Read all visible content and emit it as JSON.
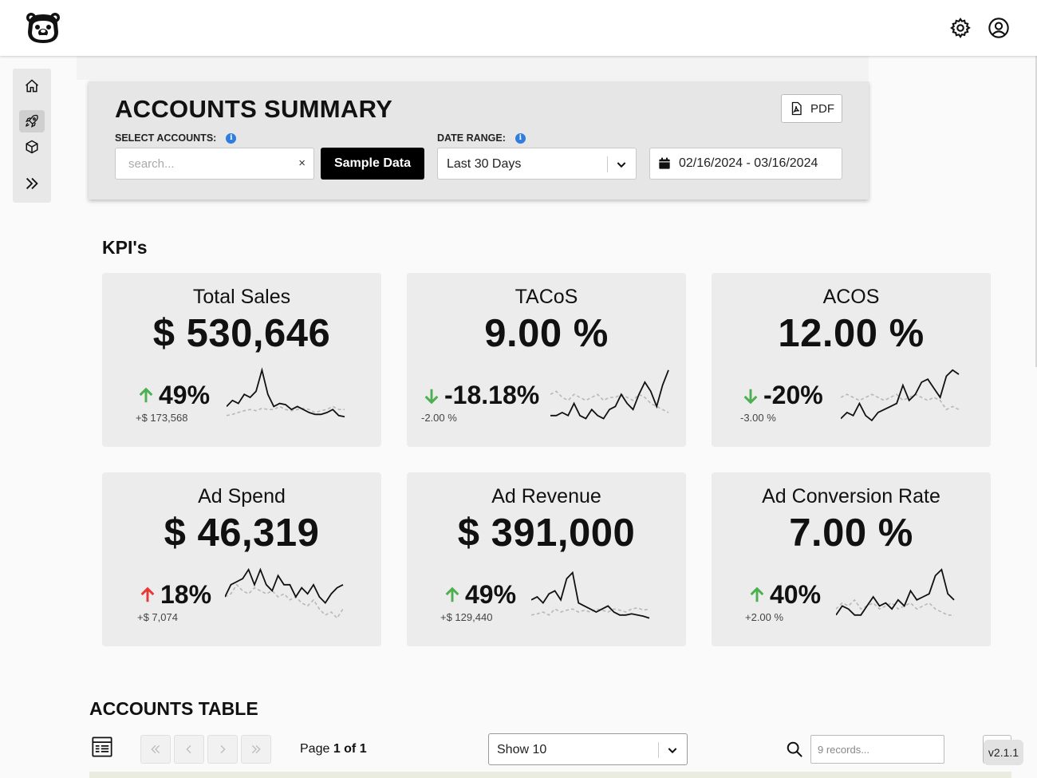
{
  "header": {
    "logo": "bear-logo",
    "icons": [
      "gear-icon",
      "user-circle-icon"
    ]
  },
  "sidebar": {
    "items": [
      {
        "icon": "home-icon",
        "active": false
      },
      {
        "icon": "rocket-icon",
        "active": true
      },
      {
        "icon": "box-icon",
        "active": false
      },
      {
        "icon": "double-chevron-right-icon",
        "active": false
      }
    ]
  },
  "summary": {
    "title": "ACCOUNTS SUMMARY",
    "pdf_label": "PDF",
    "accounts_label": "SELECT ACCOUNTS:",
    "search_placeholder": "search...",
    "clear": "×",
    "sample_button": "Sample Data",
    "date_range_label": "DATE RANGE:",
    "date_range_value": "Last 30 Days",
    "date_value": "02/16/2024 - 03/16/2024"
  },
  "kpis": {
    "section_title": "KPI's",
    "colors": {
      "up_good": "#4caf50",
      "up_bad": "#e53935",
      "down": "#4caf50",
      "current": "#111111",
      "previous": "#b8b8b8"
    },
    "cards": [
      {
        "title": "Total Sales",
        "value": "$ 530,646",
        "change": "49%",
        "direction": "up",
        "arrow_color": "#4caf50",
        "sub": "+$ 173,568",
        "spark_current": [
          0.35,
          0.45,
          0.4,
          0.55,
          0.5,
          0.6,
          0.95,
          0.55,
          0.35,
          0.4,
          0.38,
          0.3,
          0.35,
          0.3,
          0.25,
          0.22,
          0.22,
          0.25,
          0.3,
          0.2,
          0.18
        ],
        "spark_previous": [
          0.2,
          0.22,
          0.25,
          0.28,
          0.3,
          0.28,
          0.32,
          0.3,
          0.3,
          0.35,
          0.3,
          0.28,
          0.3,
          0.32,
          0.3,
          0.25,
          0.28,
          0.3,
          0.35,
          0.3,
          0.3
        ]
      },
      {
        "title": "TACoS",
        "value": "9.00 %",
        "change": "-18.18%",
        "direction": "down",
        "arrow_color": "#4caf50",
        "sub": "-2.00 %",
        "spark_current": [
          0.2,
          0.2,
          0.25,
          0.2,
          0.4,
          0.2,
          0.15,
          0.3,
          0.2,
          0.15,
          0.3,
          0.35,
          0.55,
          0.4,
          0.3,
          0.55,
          0.75,
          0.6,
          0.35,
          0.7,
          0.95
        ],
        "spark_previous": [
          0.55,
          0.6,
          0.5,
          0.45,
          0.55,
          0.5,
          0.45,
          0.5,
          0.55,
          0.45,
          0.5,
          0.5,
          0.55,
          0.5,
          0.45,
          0.55,
          0.5,
          0.4,
          0.35,
          0.3,
          0.25
        ]
      },
      {
        "title": "ACOS",
        "value": "12.00 %",
        "change": "-20%",
        "direction": "down",
        "arrow_color": "#4caf50",
        "sub": "-3.00 %",
        "spark_current": [
          0.15,
          0.25,
          0.2,
          0.4,
          0.2,
          0.12,
          0.25,
          0.3,
          0.35,
          0.4,
          0.7,
          0.45,
          0.55,
          0.75,
          0.8,
          0.65,
          0.5,
          0.85,
          0.95,
          0.88
        ],
        "spark_previous": [
          0.5,
          0.55,
          0.5,
          0.45,
          0.5,
          0.55,
          0.5,
          0.45,
          0.5,
          0.55,
          0.45,
          0.5,
          0.55,
          0.5,
          0.45,
          0.5,
          0.45,
          0.3,
          0.35,
          0.3
        ]
      },
      {
        "title": "Ad Spend",
        "value": "$ 46,319",
        "change": "18%",
        "direction": "up",
        "arrow_color": "#e53935",
        "sub": "+$ 7,074",
        "spark_current": [
          0.5,
          0.7,
          0.75,
          0.8,
          0.95,
          0.7,
          0.95,
          0.7,
          0.6,
          0.85,
          0.7,
          0.7,
          0.5,
          0.65,
          0.55,
          0.7,
          0.5,
          0.4,
          0.55,
          0.65,
          0.7
        ],
        "spark_previous": [
          0.5,
          0.55,
          0.7,
          0.6,
          0.55,
          0.65,
          0.6,
          0.55,
          0.6,
          0.5,
          0.55,
          0.45,
          0.5,
          0.4,
          0.35,
          0.45,
          0.3,
          0.2,
          0.25,
          0.15,
          0.3
        ]
      },
      {
        "title": "Ad Revenue",
        "value": "$ 391,000",
        "change": "49%",
        "direction": "up",
        "arrow_color": "#4caf50",
        "sub": "+$ 129,440",
        "spark_current": [
          0.45,
          0.5,
          0.4,
          0.55,
          0.6,
          0.45,
          0.8,
          0.9,
          0.4,
          0.35,
          0.3,
          0.25,
          0.3,
          0.35,
          0.25,
          0.2,
          0.2,
          0.22,
          0.2,
          0.18,
          0.15
        ],
        "spark_previous": [
          0.2,
          0.22,
          0.25,
          0.2,
          0.3,
          0.25,
          0.28,
          0.3,
          0.25,
          0.28,
          0.25,
          0.3,
          0.28,
          0.25,
          0.3,
          0.28,
          0.25,
          0.3,
          0.32,
          0.28,
          0.3
        ]
      },
      {
        "title": "Ad Conversion Rate",
        "value": "7.00 %",
        "change": "40%",
        "direction": "up",
        "arrow_color": "#4caf50",
        "sub": "+2.00 %",
        "spark_current": [
          0.2,
          0.35,
          0.3,
          0.2,
          0.2,
          0.35,
          0.5,
          0.35,
          0.4,
          0.3,
          0.45,
          0.35,
          0.6,
          0.45,
          0.5,
          0.55,
          0.85,
          0.95,
          0.55,
          0.45
        ],
        "spark_previous": [
          0.3,
          0.4,
          0.35,
          0.45,
          0.3,
          0.35,
          0.4,
          0.3,
          0.35,
          0.4,
          0.3,
          0.35,
          0.4,
          0.3,
          0.35,
          0.4,
          0.3,
          0.25,
          0.2,
          0.2
        ]
      }
    ]
  },
  "table": {
    "title": "ACCOUNTS TABLE",
    "page_prefix": "Page ",
    "page_value": "1 of 1",
    "show_value": "Show 10",
    "records_placeholder": "9 records...",
    "version": "v2.1.1"
  }
}
